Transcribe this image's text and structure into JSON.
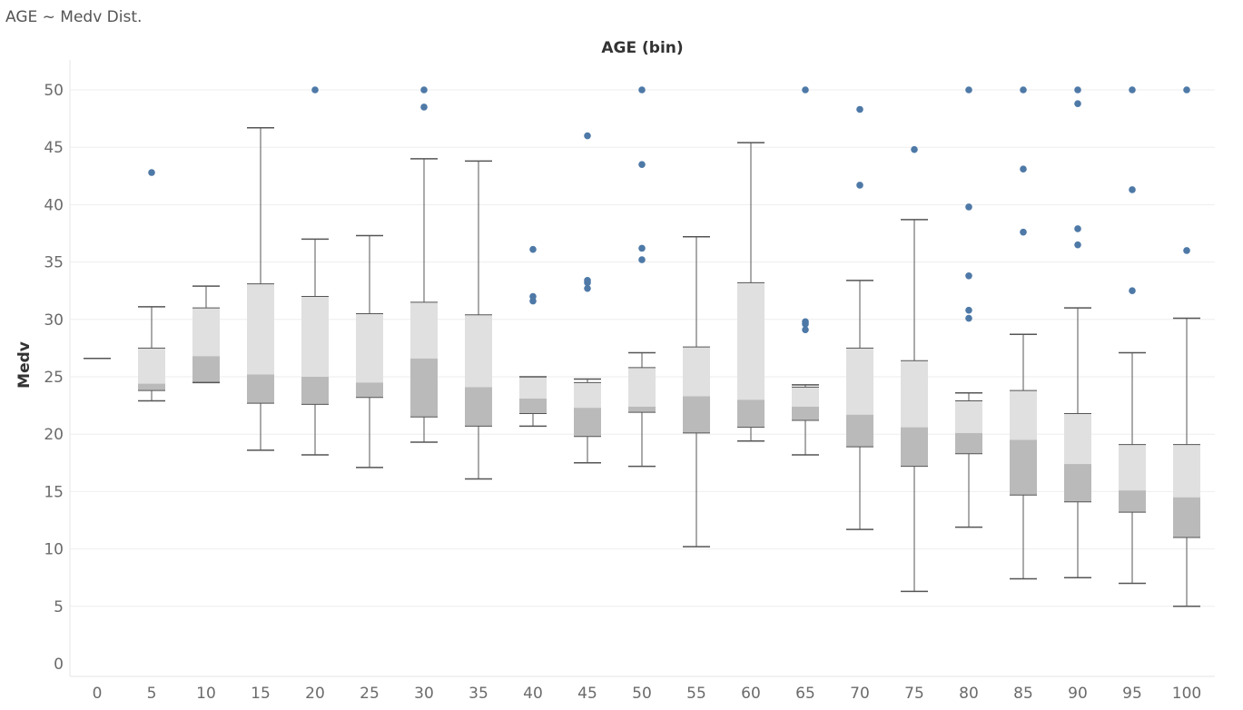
{
  "sheet_title": "AGE ~ Medv Dist.",
  "chart_data": {
    "type": "boxplot",
    "title": "AGE (bin)",
    "xlabel": "AGE (bin)",
    "ylabel": "Medv",
    "ylim": [
      0,
      50
    ],
    "y_ticks": [
      0,
      5,
      10,
      15,
      20,
      25,
      30,
      35,
      40,
      45,
      50
    ],
    "grid": true,
    "colors": {
      "upper_box": "#e0e0e0",
      "lower_box": "#bababa",
      "whisker": "#555555",
      "outlier": "#4e79a7",
      "grid": "#eeeeee"
    },
    "categories": [
      "0",
      "5",
      "10",
      "15",
      "20",
      "25",
      "30",
      "35",
      "40",
      "45",
      "50",
      "55",
      "60",
      "65",
      "70",
      "75",
      "80",
      "85",
      "90",
      "95",
      "100"
    ],
    "boxes": [
      {
        "bin": "0",
        "low": 26.6,
        "q1": 26.6,
        "median": 26.6,
        "q3": 26.6,
        "high": 26.6,
        "outliers": []
      },
      {
        "bin": "5",
        "low": 22.9,
        "q1": 23.8,
        "median": 24.4,
        "q3": 27.5,
        "high": 31.1,
        "outliers": [
          42.8
        ]
      },
      {
        "bin": "10",
        "low": 24.5,
        "q1": 24.5,
        "median": 26.8,
        "q3": 31.0,
        "high": 32.9,
        "outliers": []
      },
      {
        "bin": "15",
        "low": 18.6,
        "q1": 22.7,
        "median": 25.2,
        "q3": 33.1,
        "high": 46.7,
        "outliers": []
      },
      {
        "bin": "20",
        "low": 18.2,
        "q1": 22.6,
        "median": 25.0,
        "q3": 32.0,
        "high": 37.0,
        "outliers": [
          50.0
        ]
      },
      {
        "bin": "25",
        "low": 17.1,
        "q1": 23.2,
        "median": 24.5,
        "q3": 30.5,
        "high": 37.3,
        "outliers": []
      },
      {
        "bin": "30",
        "low": 19.3,
        "q1": 21.5,
        "median": 26.6,
        "q3": 31.5,
        "high": 44.0,
        "outliers": [
          48.5,
          50.0
        ]
      },
      {
        "bin": "35",
        "low": 16.1,
        "q1": 20.7,
        "median": 24.1,
        "q3": 30.4,
        "high": 43.8,
        "outliers": []
      },
      {
        "bin": "40",
        "low": 20.7,
        "q1": 21.8,
        "median": 23.1,
        "q3": 25.0,
        "high": 25.0,
        "outliers": [
          31.6,
          32.0,
          36.1
        ]
      },
      {
        "bin": "45",
        "low": 17.5,
        "q1": 19.8,
        "median": 22.3,
        "q3": 24.5,
        "high": 24.8,
        "outliers": [
          32.7,
          33.2,
          33.4,
          46.0
        ]
      },
      {
        "bin": "50",
        "low": 17.2,
        "q1": 21.9,
        "median": 22.4,
        "q3": 25.8,
        "high": 27.1,
        "outliers": [
          35.2,
          36.2,
          43.5,
          50.0
        ]
      },
      {
        "bin": "55",
        "low": 10.2,
        "q1": 20.1,
        "median": 23.3,
        "q3": 27.6,
        "high": 37.2,
        "outliers": []
      },
      {
        "bin": "60",
        "low": 19.4,
        "q1": 20.6,
        "median": 23.0,
        "q3": 33.2,
        "high": 45.4,
        "outliers": []
      },
      {
        "bin": "65",
        "low": 18.2,
        "q1": 21.2,
        "median": 22.4,
        "q3": 24.1,
        "high": 24.3,
        "outliers": [
          29.1,
          29.6,
          29.8,
          50.0
        ]
      },
      {
        "bin": "70",
        "low": 11.7,
        "q1": 18.9,
        "median": 21.7,
        "q3": 27.5,
        "high": 33.4,
        "outliers": [
          41.7,
          48.3
        ]
      },
      {
        "bin": "75",
        "low": 6.3,
        "q1": 17.2,
        "median": 20.6,
        "q3": 26.4,
        "high": 38.7,
        "outliers": [
          44.8
        ]
      },
      {
        "bin": "80",
        "low": 11.9,
        "q1": 18.3,
        "median": 20.1,
        "q3": 22.9,
        "high": 23.6,
        "outliers": [
          30.1,
          30.8,
          33.8,
          39.8,
          50.0
        ]
      },
      {
        "bin": "85",
        "low": 7.4,
        "q1": 14.7,
        "median": 19.5,
        "q3": 23.8,
        "high": 28.7,
        "outliers": [
          37.6,
          43.1,
          50.0
        ]
      },
      {
        "bin": "90",
        "low": 7.5,
        "q1": 14.1,
        "median": 17.4,
        "q3": 21.8,
        "high": 31.0,
        "outliers": [
          36.5,
          37.9,
          48.8,
          50.0
        ]
      },
      {
        "bin": "95",
        "low": 7.0,
        "q1": 13.2,
        "median": 15.1,
        "q3": 19.1,
        "high": 27.1,
        "outliers": [
          32.5,
          41.3,
          50.0
        ]
      },
      {
        "bin": "100",
        "low": 5.0,
        "q1": 11.0,
        "median": 14.5,
        "q3": 19.1,
        "high": 30.1,
        "outliers": [
          36.0,
          50.0
        ]
      }
    ]
  }
}
